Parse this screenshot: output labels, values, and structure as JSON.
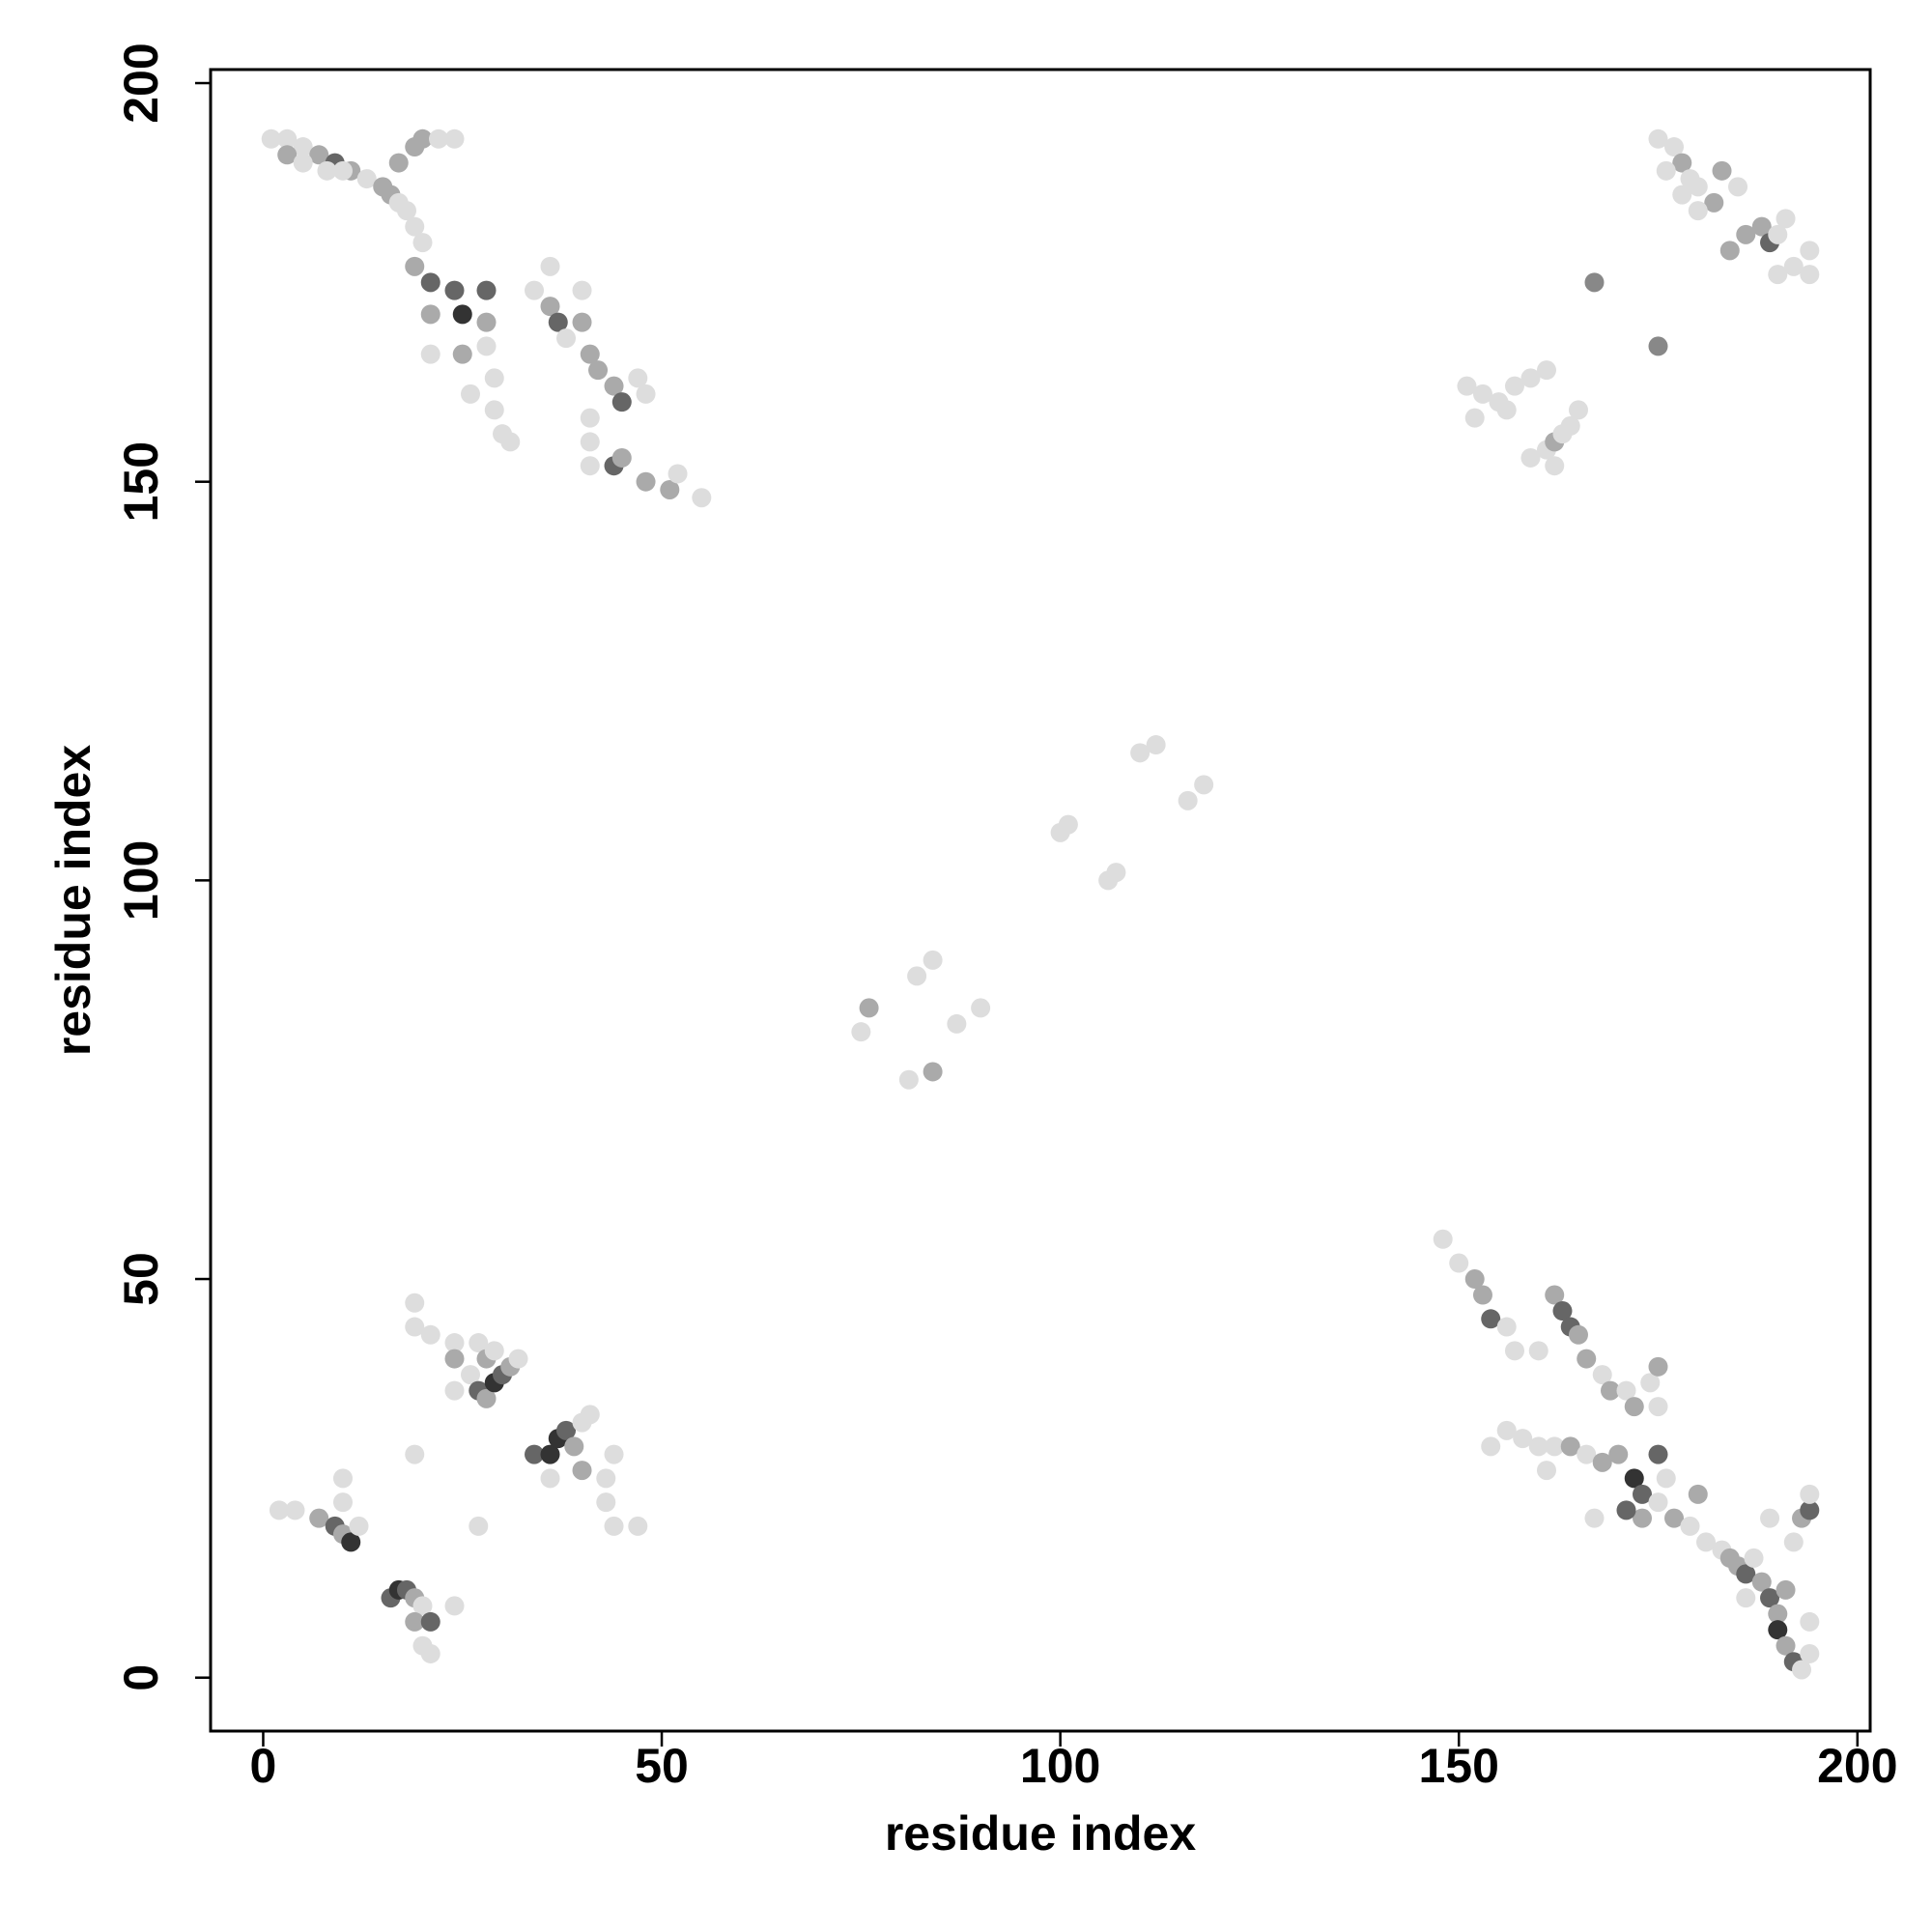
{
  "chart_data": {
    "type": "scatter",
    "xlabel": "residue index",
    "ylabel": "residue index",
    "xlim": [
      -6.6,
      201.6
    ],
    "ylim": [
      -6.7,
      201.7
    ],
    "xticks": [
      0,
      50,
      100,
      150,
      200
    ],
    "yticks": [
      0,
      50,
      100,
      150,
      200
    ],
    "x": [
      1,
      3,
      5,
      7,
      9,
      11,
      13,
      15,
      16,
      17,
      18,
      19,
      20,
      17,
      19,
      20,
      22,
      24,
      3,
      5,
      8,
      10,
      19,
      21,
      24,
      25,
      28,
      28,
      21,
      25,
      28,
      29,
      29,
      30,
      31,
      21,
      26,
      34,
      36,
      37,
      38,
      40,
      41,
      42,
      44,
      45,
      47,
      48,
      40,
      36,
      41,
      41,
      44,
      45,
      48,
      51,
      52,
      55,
      41,
      148,
      150,
      152,
      153,
      154,
      156,
      157,
      160,
      162,
      163,
      164,
      165,
      166,
      168,
      169,
      171,
      172,
      174,
      175,
      175,
      154,
      156,
      158,
      160,
      162,
      164,
      166,
      168,
      170,
      172,
      173,
      175,
      175,
      173,
      171,
      177,
      179,
      180,
      181,
      183,
      184,
      185,
      186,
      187,
      188,
      189,
      190,
      190,
      191,
      192,
      193,
      194,
      193,
      194,
      194,
      189,
      192,
      191,
      194,
      186,
      176,
      167,
      161,
      2,
      4,
      7,
      9,
      10,
      11,
      12,
      10,
      10,
      16,
      17,
      18,
      19,
      20,
      19,
      21,
      20,
      21,
      24,
      19,
      27,
      19,
      19,
      21,
      24,
      27,
      24,
      26,
      27,
      28,
      29,
      30,
      31,
      32,
      28,
      29,
      24,
      34,
      36,
      37,
      38,
      39,
      40,
      41,
      36,
      40,
      43,
      44,
      43,
      44,
      47,
      175,
      177,
      178,
      179,
      180,
      182,
      183,
      185,
      176,
      178,
      180,
      184,
      186,
      188,
      189,
      190,
      191,
      190,
      192,
      194,
      194,
      167,
      175,
      151,
      153,
      155,
      157,
      159,
      161,
      152,
      156,
      159,
      161,
      162,
      163,
      164,
      165,
      162,
      75,
      76,
      81,
      84,
      82,
      84,
      87,
      90,
      100,
      101,
      106,
      107,
      110,
      112,
      116,
      118
    ],
    "values": [
      193,
      193,
      192,
      191,
      190,
      189,
      188,
      187,
      186,
      185,
      184,
      182,
      180,
      190,
      192,
      193,
      193,
      193,
      191,
      190,
      189,
      189,
      177,
      175,
      174,
      171,
      174,
      170,
      171,
      166,
      167,
      163,
      159,
      156,
      155,
      166,
      161,
      174,
      172,
      170,
      168,
      170,
      166,
      164,
      162,
      160,
      163,
      161,
      174,
      177,
      158,
      155,
      152,
      153,
      150,
      149,
      151,
      148,
      152,
      55,
      52,
      50,
      48,
      45,
      44,
      41,
      41,
      48,
      46,
      44,
      43,
      40,
      38,
      36,
      36,
      34,
      37,
      34,
      39,
      29,
      31,
      30,
      29,
      29,
      29,
      28,
      27,
      28,
      25,
      23,
      28,
      22,
      20,
      21,
      20,
      19,
      23,
      17,
      16,
      15,
      14,
      13,
      15,
      12,
      10,
      8,
      6,
      4,
      2,
      1,
      3,
      20,
      21,
      23,
      20,
      17,
      11,
      7,
      10,
      25,
      20,
      26,
      21,
      21,
      20,
      19,
      18,
      17,
      19,
      22,
      25,
      10,
      11,
      11,
      10,
      9,
      7,
      7,
      4,
      3,
      9,
      28,
      19,
      47,
      44,
      43,
      42,
      42,
      40,
      38,
      36,
      35,
      37,
      38,
      39,
      40,
      40,
      41,
      36,
      28,
      28,
      30,
      31,
      29,
      32,
      33,
      25,
      26,
      25,
      28,
      22,
      19,
      19,
      193,
      192,
      190,
      188,
      187,
      185,
      189,
      187,
      189,
      186,
      184,
      179,
      181,
      182,
      180,
      181,
      183,
      176,
      177,
      179,
      176,
      175,
      167,
      162,
      161,
      160,
      162,
      163,
      164,
      158,
      159,
      153,
      154,
      155,
      156,
      157,
      159,
      152,
      81,
      84,
      75,
      76,
      88,
      90,
      82,
      84,
      106,
      107,
      100,
      101,
      116,
      117,
      110,
      112
    ],
    "colors": [
      "#ddd",
      "#ddd",
      "#ddd",
      "#aaa",
      "#666",
      "#aaa",
      "#ddd",
      "#aaa",
      "#aaa",
      "#ddd",
      "#ddd",
      "#ddd",
      "#ddd",
      "#aaa",
      "#aaa",
      "#aaa",
      "#ddd",
      "#ddd",
      "#aaa",
      "#ddd",
      "#ddd",
      "#ddd",
      "#aaa",
      "#666",
      "#666",
      "#333",
      "#666",
      "#aaa",
      "#aaa",
      "#aaa",
      "#ddd",
      "#ddd",
      "#ddd",
      "#ddd",
      "#ddd",
      "#ddd",
      "#ddd",
      "#ddd",
      "#aaa",
      "#666",
      "#ddd",
      "#aaa",
      "#aaa",
      "#aaa",
      "#aaa",
      "#666",
      "#ddd",
      "#ddd",
      "#ddd",
      "#ddd",
      "#ddd",
      "#ddd",
      "#666",
      "#aaa",
      "#aaa",
      "#aaa",
      "#ddd",
      "#ddd",
      "#ddd",
      "#ddd",
      "#ddd",
      "#aaa",
      "#aaa",
      "#666",
      "#ddd",
      "#ddd",
      "#ddd",
      "#aaa",
      "#666",
      "#666",
      "#aaa",
      "#aaa",
      "#ddd",
      "#aaa",
      "#ddd",
      "#aaa",
      "#ddd",
      "#ddd",
      "#aaa",
      "#ddd",
      "#ddd",
      "#ddd",
      "#ddd",
      "#ddd",
      "#aaa",
      "#ddd",
      "#aaa",
      "#aaa",
      "#333",
      "#666",
      "#666",
      "#ddd",
      "#aaa",
      "#666",
      "#aaa",
      "#ddd",
      "#aaa",
      "#ddd",
      "#ddd",
      "#aaa",
      "#aaa",
      "#666",
      "#ddd",
      "#aaa",
      "#666",
      "#aaa",
      "#333",
      "#aaa",
      "#666",
      "#ddd",
      "#ddd",
      "#aaa",
      "#666",
      "#ddd",
      "#ddd",
      "#ddd",
      "#aaa",
      "#ddd",
      "#ddd",
      "#ddd",
      "#ddd",
      "#ddd",
      "#ddd",
      "#ddd",
      "#aaa",
      "#666",
      "#aaa",
      "#333",
      "#ddd",
      "#ddd",
      "#ddd",
      "#666",
      "#333",
      "#666",
      "#aaa",
      "#ddd",
      "#aaa",
      "#666",
      "#ddd",
      "#ddd",
      "#ddd",
      "#ddd",
      "#ddd",
      "#ddd",
      "#ddd",
      "#ddd",
      "#ddd",
      "#ddd",
      "#aaa",
      "#ddd",
      "#666",
      "#aaa",
      "#333",
      "#666",
      "#aaa",
      "#ddd",
      "#aaa",
      "#ddd",
      "#ddd",
      "#666",
      "#333",
      "#333",
      "#666",
      "#aaa",
      "#ddd",
      "#ddd",
      "#ddd",
      "#aaa",
      "#ddd",
      "#ddd",
      "#ddd",
      "#ddd",
      "#ddd",
      "#ddd",
      "#ddd",
      "#aaa",
      "#ddd",
      "#ddd",
      "#aaa",
      "#aaa",
      "#ddd",
      "#ddd",
      "#ddd",
      "#ddd",
      "#aaa",
      "#aaa",
      "#aaa",
      "#666",
      "#ddd",
      "#ddd",
      "#ddd",
      "#ddd",
      "#ddd",
      "#ddd",
      "#888",
      "#888",
      "#ddd",
      "#ddd",
      "#ddd",
      "#ddd",
      "#ddd",
      "#ddd",
      "#ddd",
      "#ddd",
      "#ddd",
      "#ddd",
      "#aaa",
      "#ddd",
      "#ddd",
      "#ddd",
      "#ddd",
      "#ddd",
      "#aaa",
      "#ddd",
      "#aaa",
      "#ddd",
      "#ddd",
      "#ddd",
      "#ddd",
      "#ddd",
      "#ddd",
      "#ddd",
      "#ddd",
      "#ddd",
      "#ddd",
      "#ddd",
      "#ddd"
    ]
  }
}
